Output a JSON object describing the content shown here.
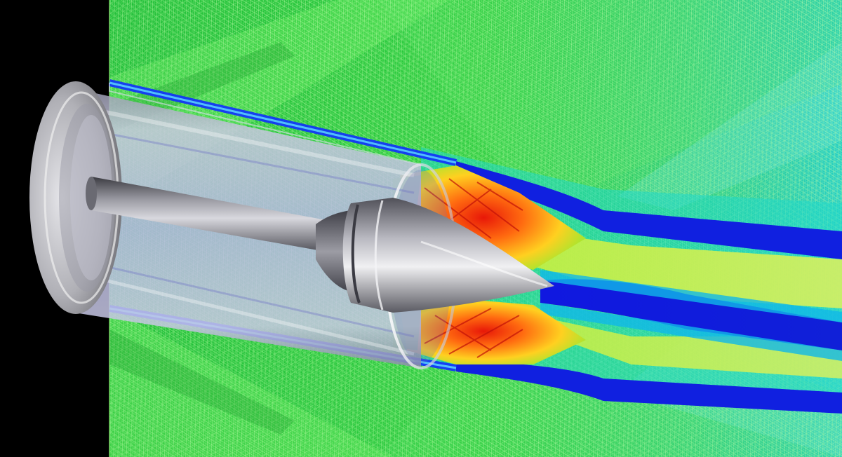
{
  "scene": {
    "kind": "cfd-simulation-visualization",
    "subject": "bullet-in-barrel",
    "elements": [
      "black-background-strip",
      "mesh-field",
      "barrel",
      "rod",
      "bullet",
      "shock-cells",
      "exhaust-plume"
    ],
    "palette": {
      "background": "#000000",
      "field": "#22c43a",
      "field_light": "#7dee5a",
      "mesh_line": "#c8ffb0",
      "low": "#0a10d8",
      "mid": "#00d8e0",
      "yellow": "#e8f040",
      "high": "#ff7a10",
      "peak": "#e81808",
      "metal_light": "#e8e8ea",
      "metal_dark": "#4a4a50",
      "glass": "#8a90d0"
    }
  }
}
